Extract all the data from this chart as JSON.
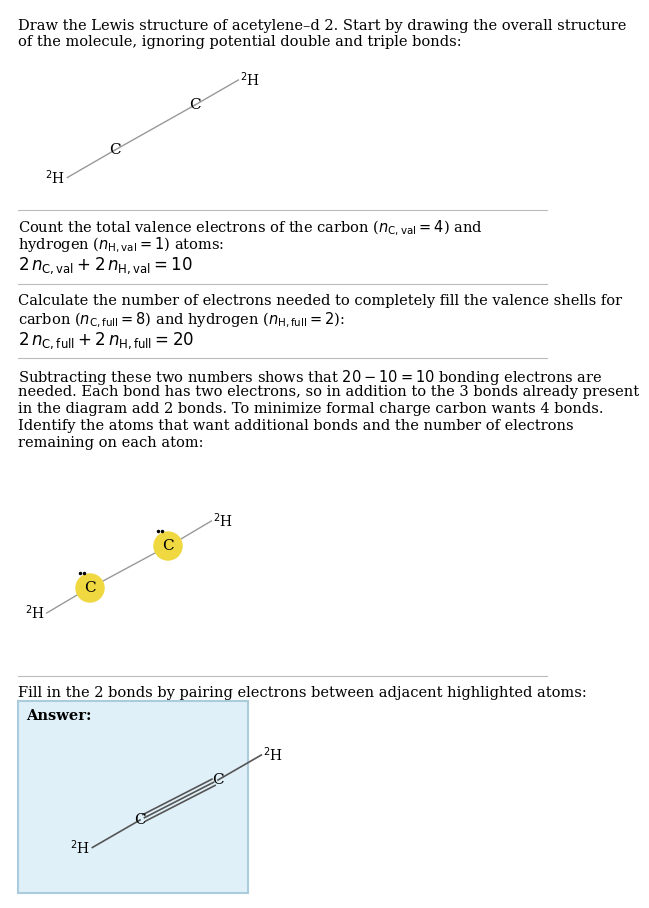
{
  "bg_color": "#ffffff",
  "text_color": "#000000",
  "highlight_color": "#f0d840",
  "separator_color": "#bbbbbb",
  "answer_box_color": "#ddeeff",
  "answer_box_border": "#aaccee",
  "title_line1": "Draw the Lewis structure of acetylene–d 2. Start by drawing the overall structure",
  "title_line2": "of the molecule, ignoring potential double and triple bonds:",
  "s1_line1": "Count the total valence electrons of the carbon ($n_{\\mathrm{C,val}} = 4$) and",
  "s1_line2": "hydrogen ($n_{\\mathrm{H,val}} = 1$) atoms:",
  "s1_line3": "$2\\,n_{\\mathrm{C,val}} + 2\\,n_{\\mathrm{H,val}} = 10$",
  "s2_line1": "Calculate the number of electrons needed to completely fill the valence shells for",
  "s2_line2": "carbon ($n_{\\mathrm{C,full}} = 8$) and hydrogen ($n_{\\mathrm{H,full}} = 2$):",
  "s2_line3": "$2\\,n_{\\mathrm{C,full}} + 2\\,n_{\\mathrm{H,full}} = 20$",
  "s3_line1": "Subtracting these two numbers shows that $20 - 10 = 10$ bonding electrons are",
  "s3_line2": "needed. Each bond has two electrons, so in addition to the 3 bonds already present",
  "s3_line3": "in the diagram add 2 bonds. To minimize formal charge carbon wants 4 bonds.",
  "s3_line4": "Identify the atoms that want additional bonds and the number of electrons",
  "s3_line5": "remaining on each atom:",
  "s4_line1": "Fill in the 2 bonds by pairing electrons between adjacent highlighted atoms:",
  "answer_label": "Answer:"
}
